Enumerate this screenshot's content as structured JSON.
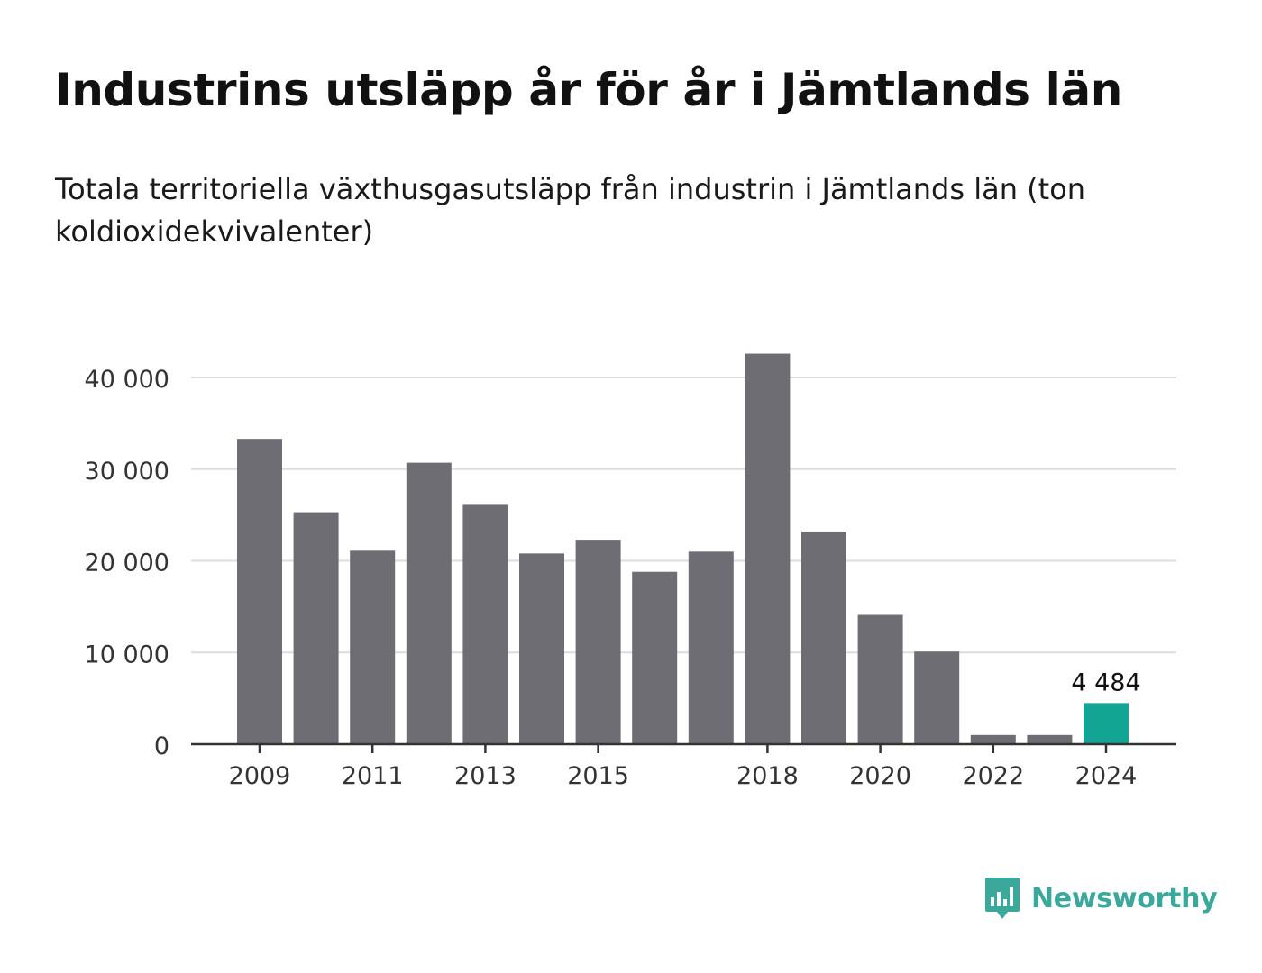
{
  "title": "Industrins utsläpp år för år i Jämtlands län",
  "subtitle": "Totala territoriella växthusgasutsläpp från industrin i Jämtlands län (ton koldioxidekvivalenter)",
  "brand": {
    "name": "Newsworthy",
    "color": "#3aa89a",
    "icon": "newsworthy-logo-icon"
  },
  "colors": {
    "bar": "#6e6d73",
    "highlight": "#12a594",
    "grid": "#dddddd",
    "axis": "#333333"
  },
  "chart_data": {
    "type": "bar",
    "title": "",
    "xlabel": "",
    "ylabel": "",
    "categories": [
      "2009",
      "2010",
      "2011",
      "2012",
      "2013",
      "2014",
      "2015",
      "2016",
      "2017",
      "2018",
      "2019",
      "2020",
      "2021",
      "2022",
      "2023",
      "2024"
    ],
    "x_tick_labels": [
      "2009",
      "2011",
      "2013",
      "2015",
      "2018",
      "2020",
      "2022",
      "2024"
    ],
    "values": [
      33300,
      25300,
      21100,
      30700,
      26200,
      20800,
      22300,
      18800,
      21000,
      42600,
      23200,
      14100,
      10100,
      1000,
      1000,
      4484
    ],
    "highlight_category": "2024",
    "data_labels": [
      {
        "category": "2024",
        "label": "4 484"
      }
    ],
    "y_ticks": [
      0,
      10000,
      20000,
      30000,
      40000
    ],
    "y_tick_labels": [
      "0",
      "10 000",
      "20 000",
      "30 000",
      "40 000"
    ],
    "ylim": [
      0,
      42600
    ],
    "grid": true,
    "legend": "none"
  }
}
